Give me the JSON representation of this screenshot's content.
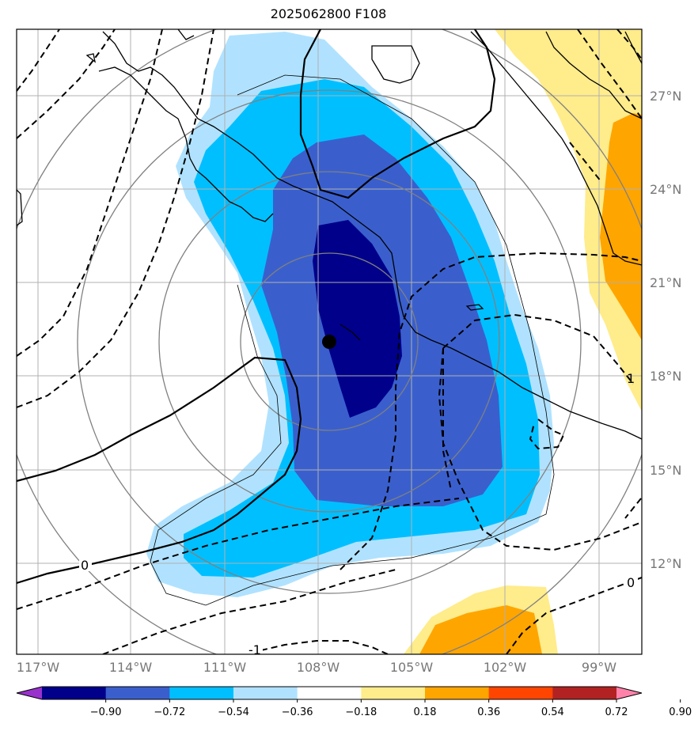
{
  "title": "2025062800 F108",
  "map": {
    "longitude_labels": [
      "117°W",
      "114°W",
      "111°W",
      "108°W",
      "105°W",
      "102°W",
      "99°W"
    ],
    "latitude_labels": [
      "27°N",
      "24°N",
      "21°N",
      "18°N",
      "15°N",
      "12°N"
    ],
    "contour_labels": [
      "0",
      "0",
      "-1",
      "1"
    ],
    "storm_center": {
      "lon": "108.4°W",
      "lat": "19.2°N"
    }
  },
  "colorbar": {
    "ticks": [
      "−0.90",
      "−0.72",
      "−0.54",
      "−0.36",
      "−0.18",
      "0.18",
      "0.36",
      "0.54",
      "0.72",
      "0.90"
    ],
    "colors": [
      "#9932cc",
      "#00008b",
      "#3a5fcd",
      "#00bfff",
      "#b0e2ff",
      "#ffffff",
      "#ffec8b",
      "#ffa500",
      "#ff4500",
      "#b22222",
      "#ff82ab"
    ]
  }
}
